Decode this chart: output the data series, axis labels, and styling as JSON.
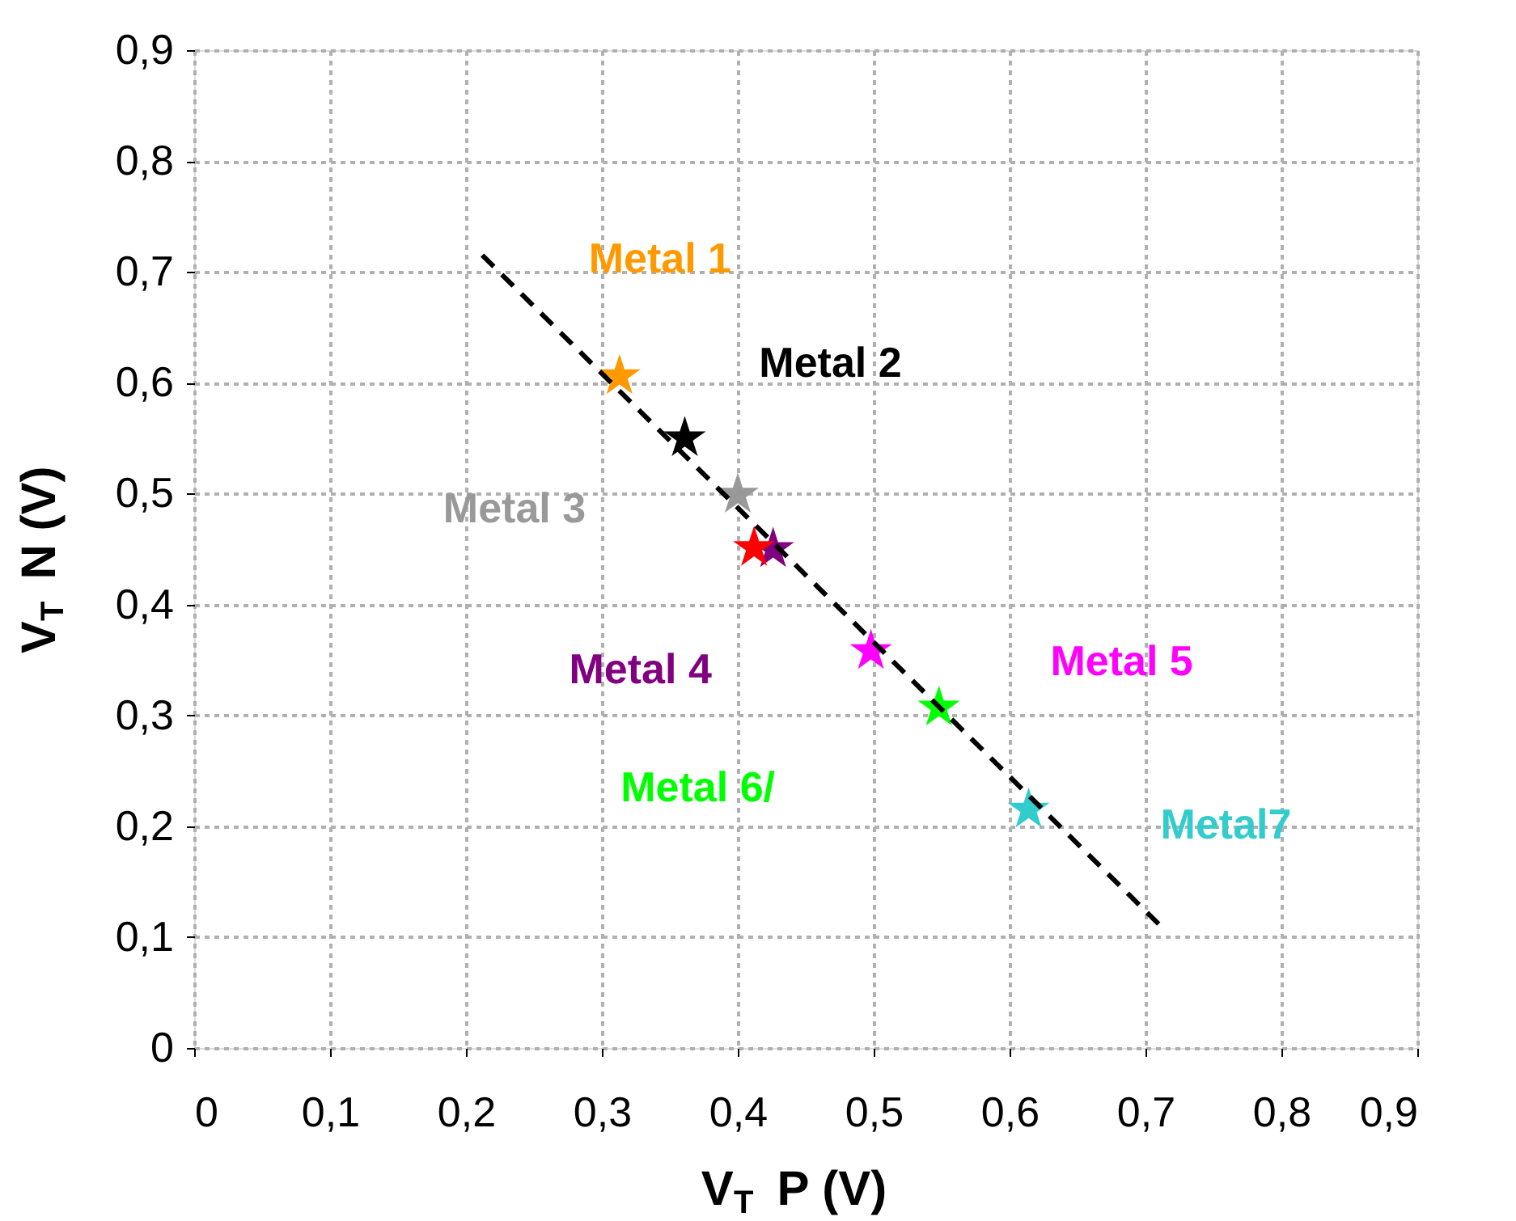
{
  "chart_data": {
    "type": "scatter",
    "xlabel": "V$_{T}$P (V)",
    "ylabel": "V$_{T}$N (V)",
    "xlim": [
      0,
      0.9
    ],
    "ylim": [
      0,
      0.9
    ],
    "xticks": [
      {
        "value": 0,
        "label": "0"
      },
      {
        "value": 0.1,
        "label": "0,1"
      },
      {
        "value": 0.2,
        "label": "0,2"
      },
      {
        "value": 0.3,
        "label": "0,3"
      },
      {
        "value": 0.4,
        "label": "0,4"
      },
      {
        "value": 0.5,
        "label": "0,5"
      },
      {
        "value": 0.6,
        "label": "0,6"
      },
      {
        "value": 0.7,
        "label": "0,7"
      },
      {
        "value": 0.8,
        "label": "0,8"
      },
      {
        "value": 0.9,
        "label": "0,9"
      }
    ],
    "yticks": [
      {
        "value": 0,
        "label": "0"
      },
      {
        "value": 0.1,
        "label": "0,1"
      },
      {
        "value": 0.2,
        "label": "0,2"
      },
      {
        "value": 0.3,
        "label": "0,3"
      },
      {
        "value": 0.4,
        "label": "0,4"
      },
      {
        "value": 0.5,
        "label": "0,5"
      },
      {
        "value": 0.6,
        "label": "0,6"
      },
      {
        "value": 0.7,
        "label": "0,7"
      },
      {
        "value": 0.8,
        "label": "0,8"
      },
      {
        "value": 0.9,
        "label": "0,9"
      }
    ],
    "grid": true,
    "marker": "star",
    "series": [
      {
        "name": "Metal 1",
        "color": "#ff9900",
        "x": [
          0.313
        ],
        "values": [
          0.606
        ]
      },
      {
        "name": "Metal 2",
        "color": "#000000",
        "x": [
          0.361
        ],
        "values": [
          0.55
        ]
      },
      {
        "name": "Metal 3",
        "color": "#999999",
        "x": [
          0.4
        ],
        "values": [
          0.499
        ]
      },
      {
        "name": "Metal 4",
        "color": "#800080",
        "x": [
          0.426
        ],
        "values": [
          0.45
        ]
      },
      {
        "name": "Metal 5",
        "color": "#ff00ff",
        "x": [
          0.498
        ],
        "values": [
          0.358
        ]
      },
      {
        "name": "Metal 6/",
        "color": "#00ff00",
        "x": [
          0.548
        ],
        "values": [
          0.307
        ]
      },
      {
        "name": "Metal7",
        "color": "#33cccc",
        "x": [
          0.614
        ],
        "values": [
          0.215
        ]
      },
      {
        "color": "#ff0000",
        "x": [
          0.412
        ],
        "values": [
          0.451
        ]
      },
      {
        "type": "line",
        "color": "#000000",
        "line_style": "dashed",
        "marker": "none",
        "x": [
          0.212,
          0.712
        ],
        "values": [
          0.715,
          0.109
        ]
      }
    ]
  }
}
